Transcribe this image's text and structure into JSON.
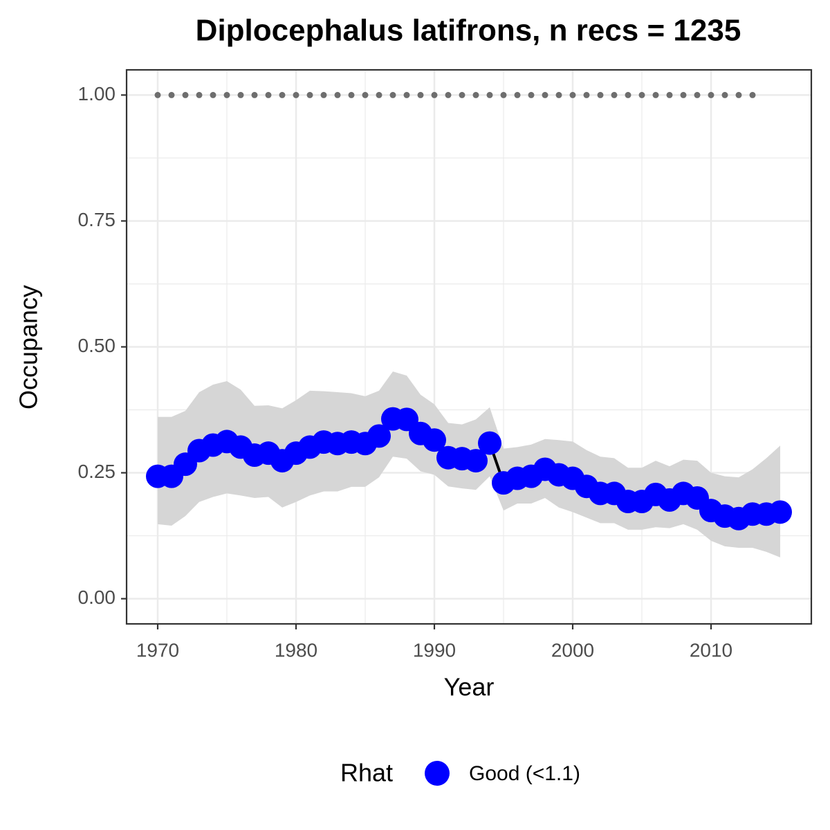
{
  "chart_data": {
    "type": "line",
    "title": "Diplocephalus latifrons, n recs = 1235",
    "x_label": "Year",
    "y_label": "Occupancy",
    "legend_title": "Rhat",
    "x": [
      1970,
      1971,
      1972,
      1973,
      1974,
      1975,
      1976,
      1977,
      1978,
      1979,
      1980,
      1981,
      1982,
      1983,
      1984,
      1985,
      1986,
      1987,
      1988,
      1989,
      1990,
      1991,
      1992,
      1993,
      1994,
      1995,
      1996,
      1997,
      1998,
      1999,
      2000,
      2001,
      2002,
      2003,
      2004,
      2005,
      2006,
      2007,
      2008,
      2009,
      2010,
      2011,
      2012,
      2013,
      2014,
      2015
    ],
    "series": [
      {
        "name": "Good (<1.1)",
        "color": "#0000ff",
        "line_color": "#000000",
        "ribbon_color": "#d6d6d6",
        "values": [
          0.243,
          0.243,
          0.267,
          0.294,
          0.305,
          0.312,
          0.301,
          0.285,
          0.289,
          0.274,
          0.289,
          0.301,
          0.311,
          0.308,
          0.311,
          0.308,
          0.323,
          0.357,
          0.356,
          0.328,
          0.315,
          0.28,
          0.278,
          0.274,
          0.309,
          0.23,
          0.239,
          0.243,
          0.257,
          0.246,
          0.239,
          0.223,
          0.209,
          0.209,
          0.193,
          0.193,
          0.207,
          0.196,
          0.209,
          0.2,
          0.175,
          0.164,
          0.159,
          0.168,
          0.168,
          0.172
        ],
        "upper": [
          0.361,
          0.361,
          0.373,
          0.41,
          0.425,
          0.432,
          0.415,
          0.383,
          0.384,
          0.378,
          0.394,
          0.413,
          0.412,
          0.41,
          0.408,
          0.402,
          0.413,
          0.451,
          0.443,
          0.405,
          0.386,
          0.349,
          0.346,
          0.356,
          0.38,
          0.298,
          0.301,
          0.306,
          0.317,
          0.315,
          0.312,
          0.295,
          0.282,
          0.279,
          0.26,
          0.26,
          0.274,
          0.263,
          0.276,
          0.274,
          0.25,
          0.243,
          0.241,
          0.257,
          0.279,
          0.304
        ],
        "lower": [
          0.148,
          0.145,
          0.164,
          0.192,
          0.202,
          0.209,
          0.205,
          0.2,
          0.202,
          0.181,
          0.192,
          0.205,
          0.213,
          0.213,
          0.222,
          0.222,
          0.241,
          0.282,
          0.278,
          0.253,
          0.246,
          0.223,
          0.219,
          0.216,
          0.243,
          0.175,
          0.189,
          0.189,
          0.2,
          0.181,
          0.172,
          0.161,
          0.15,
          0.15,
          0.137,
          0.137,
          0.142,
          0.14,
          0.148,
          0.137,
          0.115,
          0.104,
          0.101,
          0.101,
          0.093,
          0.082
        ]
      }
    ],
    "markers": {
      "color": "#6e6e6e",
      "x": [
        1970,
        1971,
        1972,
        1973,
        1974,
        1975,
        1976,
        1977,
        1978,
        1979,
        1980,
        1981,
        1982,
        1983,
        1984,
        1985,
        1986,
        1987,
        1988,
        1989,
        1990,
        1991,
        1992,
        1993,
        1994,
        1995,
        1996,
        1997,
        1998,
        1999,
        2000,
        2001,
        2002,
        2003,
        2004,
        2005,
        2006,
        2007,
        2008,
        2009,
        2010,
        2011,
        2012,
        2013
      ],
      "values": [
        1,
        1,
        1,
        1,
        1,
        1,
        1,
        1,
        1,
        1,
        1,
        1,
        1,
        1,
        1,
        1,
        1,
        1,
        1,
        1,
        1,
        1,
        1,
        1,
        1,
        1,
        1,
        1,
        1,
        1,
        1,
        1,
        1,
        1,
        1,
        1,
        1,
        1,
        1,
        1,
        1,
        1,
        1,
        1
      ]
    },
    "xlim": [
      1967.75,
      2017.25
    ],
    "ylim": [
      -0.05,
      1.05
    ],
    "xticks": [
      1970,
      1980,
      1990,
      2000,
      2010
    ],
    "yticks": [
      {
        "value": 0,
        "label": "0.00"
      },
      {
        "value": 0.25,
        "label": "0.25"
      },
      {
        "value": 0.5,
        "label": "0.50"
      },
      {
        "value": 0.75,
        "label": "0.75"
      },
      {
        "value": 1,
        "label": "1.00"
      }
    ],
    "grid": true
  }
}
